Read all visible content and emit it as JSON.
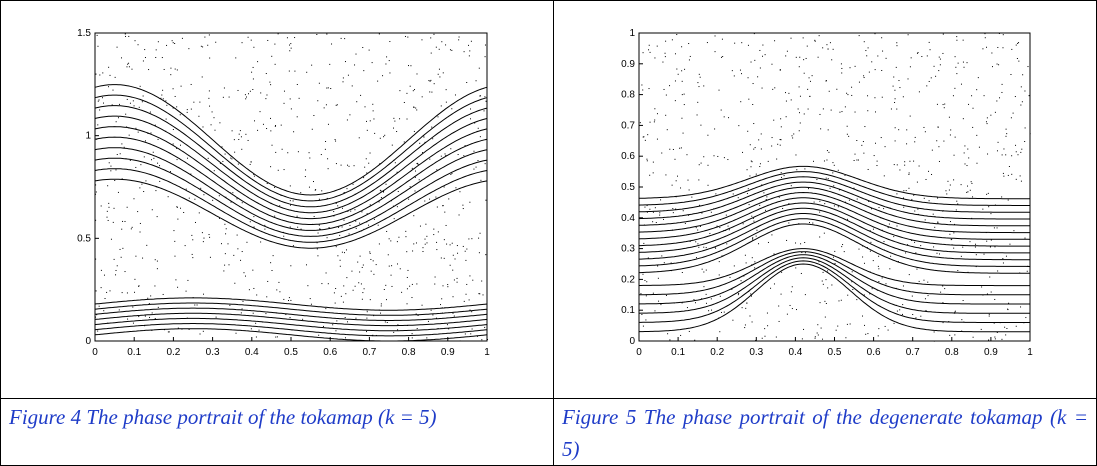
{
  "figures": [
    {
      "caption": "Figure 4 The phase portrait of the tokamap (k = 5)",
      "xticks": [
        0,
        0.1,
        0.2,
        0.3,
        0.4,
        0.5,
        0.6,
        0.7,
        0.8,
        0.9,
        1
      ],
      "yticks": [
        0,
        0.5,
        1,
        1.5
      ]
    },
    {
      "caption": "Figure 5 The phase portrait of the degenerate tokamap (k = 5)",
      "xticks": [
        0,
        0.1,
        0.2,
        0.3,
        0.4,
        0.5,
        0.6,
        0.7,
        0.8,
        0.9,
        1
      ],
      "yticks": [
        0,
        0.1,
        0.2,
        0.3,
        0.4,
        0.5,
        0.6,
        0.7,
        0.8,
        0.9,
        1
      ]
    }
  ]
}
